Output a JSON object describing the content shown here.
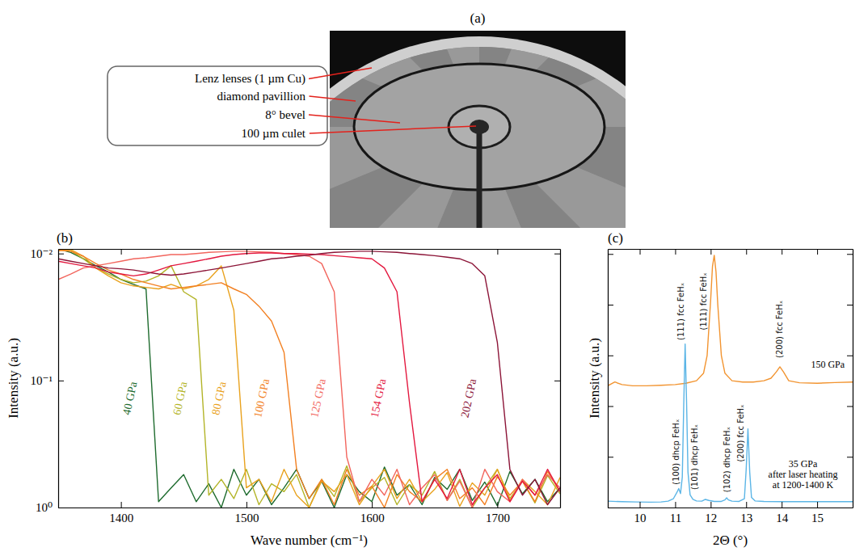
{
  "chart_data": [
    {
      "type": "image",
      "panel": "(a)",
      "labels": [
        "Lenz lenses (1 µm Cu)",
        "diamond pavillion",
        "8° bevel",
        "100 µm culet"
      ]
    },
    {
      "type": "line",
      "panel": "(b)",
      "x_label": "Wave number (cm⁻¹)",
      "y_label": "Intensity (a.u.)",
      "log": "y",
      "x": [
        1350,
        1360,
        1370,
        1380,
        1390,
        1400,
        1410,
        1420,
        1430,
        1440,
        1450,
        1460,
        1470,
        1480,
        1490,
        1500,
        1510,
        1520,
        1530,
        1540,
        1550,
        1560,
        1570,
        1580,
        1590,
        1600,
        1610,
        1620,
        1630,
        1640,
        1650,
        1660,
        1670,
        1680,
        1690,
        1700,
        1710,
        1720,
        1730,
        1740,
        1750
      ],
      "xlim": [
        1350,
        1750
      ],
      "xticks": [
        1400,
        1500,
        1600,
        1700
      ],
      "ylim": [
        1,
        0.0092
      ],
      "yticks": [
        {
          "value": 0.01,
          "label": "10⁻²"
        },
        {
          "value": 0.1,
          "label": "10⁻¹"
        },
        {
          "value": 1,
          "label": "10⁰"
        }
      ],
      "series": [
        {
          "name": "40 GPa",
          "color": "#1e6b2e",
          "values": [
            0.0092,
            0.0098,
            0.011,
            0.0125,
            0.014,
            0.016,
            0.0175,
            0.019,
            0.9,
            0.7,
            0.55,
            0.9,
            0.65,
            1,
            0.5,
            0.8,
            0.6,
            0.95,
            0.7,
            0.5,
            0.85,
            0.62,
            1,
            0.55,
            0.75,
            0.9,
            0.48,
            0.8,
            0.66,
            0.95,
            0.58,
            0.72,
            0.5,
            0.88,
            0.63,
            0.97,
            0.52,
            0.78,
            0.6,
            0.9,
            0.7
          ]
        },
        {
          "name": "60 GPa",
          "color": "#b3b428",
          "values": [
            0.0093,
            0.0095,
            0.011,
            0.013,
            0.0145,
            0.016,
            0.017,
            0.0165,
            0.015,
            0.0125,
            0.02,
            0.023,
            0.8,
            0.6,
            0.85,
            0.5,
            0.95,
            0.65,
            0.75,
            0.55,
            1,
            0.6,
            0.82,
            0.47,
            0.9,
            0.7,
            0.58,
            0.95,
            0.66,
            0.8,
            0.52,
            0.88,
            0.6,
            1,
            0.7,
            0.5,
            0.85,
            0.62,
            0.92,
            0.56,
            0.78
          ]
        },
        {
          "name": "80 GPa",
          "color": "#e9a21e",
          "values": [
            0.0095,
            0.0093,
            0.0105,
            0.013,
            0.015,
            0.017,
            0.018,
            0.0185,
            0.019,
            0.0175,
            0.019,
            0.018,
            0.016,
            0.0125,
            0.028,
            0.7,
            0.6,
            0.9,
            0.5,
            0.8,
            1,
            0.62,
            0.75,
            0.55,
            0.95,
            0.68,
            0.5,
            0.85,
            0.6,
            0.9,
            0.72,
            0.53,
            0.98,
            0.64,
            0.8,
            0.5,
            0.88,
            0.6,
            0.75,
            0.95,
            0.58
          ]
        },
        {
          "name": "100 GPa",
          "color": "#f28022",
          "values": [
            0.0094,
            0.0096,
            0.0105,
            0.012,
            0.0135,
            0.0145,
            0.016,
            0.017,
            0.018,
            0.019,
            0.0185,
            0.018,
            0.0175,
            0.017,
            0.019,
            0.021,
            0.026,
            0.034,
            0.06,
            0.5,
            0.85,
            0.6,
            0.95,
            0.5,
            0.8,
            0.68,
            1,
            0.55,
            0.75,
            0.9,
            0.6,
            0.5,
            0.85,
            0.7,
            0.95,
            0.57,
            0.8,
            0.62,
            0.9,
            0.52,
            0.75
          ]
        },
        {
          "name": "125 GPa",
          "color": "#f2665e",
          "values": [
            0.016,
            0.0145,
            0.013,
            0.0125,
            0.012,
            0.0115,
            0.011,
            0.0108,
            0.0105,
            0.0102,
            0.0102,
            0.01,
            0.0098,
            0.0097,
            0.0096,
            0.0096,
            0.0097,
            0.0098,
            0.01,
            0.0102,
            0.0105,
            0.012,
            0.02,
            0.4,
            0.9,
            0.6,
            0.8,
            0.5,
            0.95,
            0.7,
            0.55,
            0.88,
            0.62,
            1,
            0.5,
            0.75,
            0.9,
            0.6,
            0.8,
            0.55,
            0.7
          ]
        },
        {
          "name": "154 GPa",
          "color": "#e3173e",
          "values": [
            0.0115,
            0.012,
            0.0125,
            0.013,
            0.014,
            0.0145,
            0.015,
            0.0145,
            0.0135,
            0.0125,
            0.012,
            0.0115,
            0.011,
            0.0105,
            0.0102,
            0.01,
            0.0099,
            0.0099,
            0.01,
            0.01,
            0.0101,
            0.0102,
            0.0104,
            0.0106,
            0.0108,
            0.011,
            0.013,
            0.02,
            0.15,
            0.9,
            0.6,
            0.85,
            0.5,
            0.95,
            0.7,
            0.55,
            0.9,
            0.62,
            0.8,
            0.5,
            0.75
          ]
        },
        {
          "name": "202 GPa",
          "color": "#8c1538",
          "values": [
            0.011,
            0.0115,
            0.012,
            0.0125,
            0.013,
            0.0132,
            0.0135,
            0.014,
            0.0145,
            0.0148,
            0.0145,
            0.014,
            0.0135,
            0.013,
            0.0125,
            0.012,
            0.0115,
            0.011,
            0.0108,
            0.0105,
            0.0103,
            0.01,
            0.0098,
            0.0097,
            0.0096,
            0.0096,
            0.0097,
            0.0098,
            0.01,
            0.0102,
            0.0104,
            0.0107,
            0.011,
            0.012,
            0.015,
            0.05,
            0.5,
            0.8,
            0.6,
            0.95,
            0.7
          ]
        }
      ]
    },
    {
      "type": "line",
      "panel": "(c)",
      "x_label": "2Θ (°)",
      "y_label": "Intensity (a.u.)",
      "tick_labels": "x",
      "xlim": [
        9.1,
        16
      ],
      "xticks": [
        10,
        11,
        12,
        13,
        14,
        15
      ],
      "ylim": [
        0,
        102
      ],
      "yticks": [
        0,
        20,
        40,
        60,
        80,
        100
      ],
      "series": [
        {
          "name": "150 GPa",
          "color": "#f29430",
          "x": [
            9.1,
            9.3,
            9.5,
            9.8,
            10.2,
            10.6,
            11.0,
            11.3,
            11.6,
            11.8,
            11.9,
            12.0,
            12.05,
            12.1,
            12.15,
            12.2,
            12.3,
            12.4,
            12.6,
            12.9,
            13.2,
            13.5,
            13.7,
            13.85,
            13.95,
            14.05,
            14.2,
            14.5,
            15.0,
            15.5,
            16.0
          ],
          "values": [
            48,
            49.5,
            48.5,
            48,
            48,
            48.2,
            48.5,
            49,
            50,
            53,
            60,
            82,
            95,
            99.5,
            93,
            80,
            60,
            53,
            50,
            49.5,
            49.5,
            50,
            51,
            53.5,
            55.5,
            53.5,
            50,
            49.2,
            49,
            49.3,
            49.5
          ],
          "peak_labels": [
            "(111) fcc FeHₓ",
            "(200) fcc FeHₓ"
          ]
        },
        {
          "name": "35 GPa",
          "annotation": [
            "after laser heating",
            "at 1200-1400 K"
          ],
          "color": "#5bb5e6",
          "x": [
            9.1,
            9.5,
            9.9,
            10.3,
            10.6,
            10.8,
            10.95,
            11.05,
            11.1,
            11.15,
            11.2,
            11.24,
            11.28,
            11.32,
            11.36,
            11.42,
            11.5,
            11.6,
            11.75,
            11.85,
            11.95,
            12.1,
            12.3,
            12.4,
            12.45,
            12.5,
            12.6,
            12.8,
            12.95,
            13.0,
            13.05,
            13.1,
            13.15,
            13.25,
            13.5,
            14.0,
            14.5,
            15.0,
            15.5,
            16.0
          ],
          "values": [
            2.5,
            2.3,
            2.2,
            2.1,
            2.2,
            2.5,
            3.5,
            6,
            7.5,
            5.5,
            12,
            40,
            64.5,
            42,
            14,
            5,
            3.2,
            2.6,
            2.5,
            3.2,
            2.8,
            2.4,
            2.4,
            3.0,
            3.8,
            3.0,
            2.5,
            2.4,
            3.5,
            15,
            31,
            14,
            4,
            2.6,
            2.4,
            2.3,
            2.3,
            2.3,
            2.3,
            2.3
          ],
          "peak_labels": [
            "(100) dhcp FeHₓ",
            "(111) fcc FeHₓ",
            "(101) dhcp FeHₓ",
            "(102) dhcp FeHₓ",
            "(200) fcc FeHₓ"
          ]
        }
      ]
    }
  ]
}
